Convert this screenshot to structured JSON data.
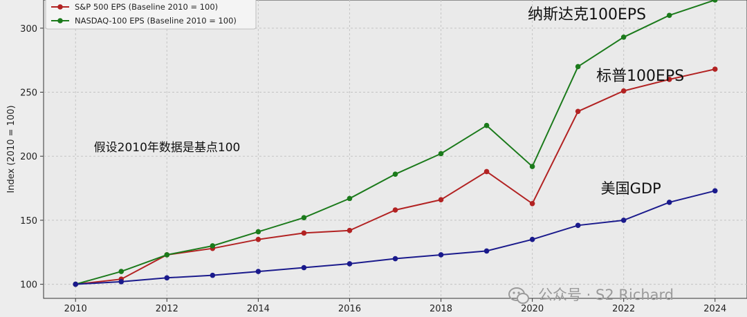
{
  "chart_data": {
    "type": "line",
    "title": "",
    "xlabel": "",
    "ylabel": "Index (2010 = 100)",
    "xlim": [
      2009.3,
      2024.7
    ],
    "ylim": [
      89,
      322
    ],
    "x_ticks": [
      "2010",
      "2012",
      "2014",
      "2016",
      "2018",
      "2020",
      "2022",
      "2024"
    ],
    "y_ticks": [
      "100",
      "150",
      "200",
      "250",
      "300"
    ],
    "grid": true,
    "legend_position": "top-left",
    "x": [
      2010,
      2011,
      2012,
      2013,
      2014,
      2015,
      2016,
      2017,
      2018,
      2019,
      2020,
      2021,
      2022,
      2023,
      2024
    ],
    "series": [
      {
        "name": "S&P 500 EPS (Baseline 2010 = 100)",
        "color": "#b22222",
        "values": [
          100,
          104,
          123,
          128,
          135,
          140,
          142,
          158,
          166,
          188,
          163,
          235,
          251,
          260,
          268
        ]
      },
      {
        "name": "NASDAQ-100 EPS (Baseline 2010 = 100)",
        "color": "#1b7a1b",
        "values": [
          100,
          110,
          123,
          130,
          141,
          152,
          167,
          186,
          202,
          224,
          192,
          270,
          293,
          310,
          322
        ]
      },
      {
        "name": "",
        "color": "#1a1a8c",
        "values": [
          100,
          102,
          105,
          107,
          110,
          113,
          116,
          120,
          123,
          126,
          135,
          146,
          150,
          164,
          173
        ]
      }
    ],
    "annotations": [
      {
        "text": "纳斯达克100EPS",
        "x": 2019.9,
        "y": 307,
        "size": 22
      },
      {
        "text": "标普100EPS",
        "x": 2021.4,
        "y": 259,
        "size": 22
      },
      {
        "text": "美国GDP",
        "x": 2021.5,
        "y": 171,
        "size": 21
      },
      {
        "text": "假设2010年数据是基点100",
        "x": 2010.4,
        "y": 204,
        "size": 17
      }
    ],
    "watermark": "公众号 · S2 Richard"
  }
}
